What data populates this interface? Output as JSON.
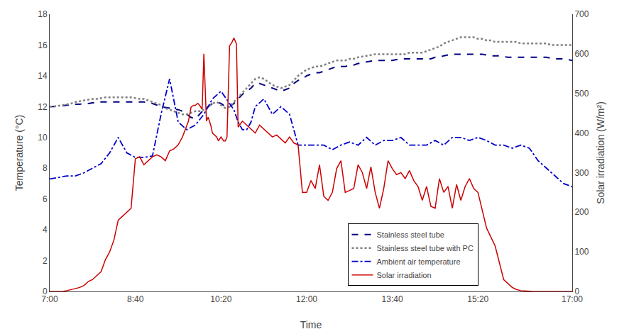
{
  "chart_data": {
    "type": "line",
    "xlabel": "Time",
    "ylabel": "Temperature (°C)",
    "y2label": "Solar irradiation (W/m²)",
    "xlim": [
      0,
      610
    ],
    "ylim": [
      0,
      18
    ],
    "y2lim": [
      0,
      700
    ],
    "xticks": [
      {
        "value": 0,
        "label": "7:00"
      },
      {
        "value": 100,
        "label": "8:40"
      },
      {
        "value": 200,
        "label": "10:20"
      },
      {
        "value": 300,
        "label": "12:00"
      },
      {
        "value": 400,
        "label": "13:40"
      },
      {
        "value": 500,
        "label": "15:20"
      },
      {
        "value": 610,
        "label": "17:00"
      }
    ],
    "yticks": [
      0,
      2,
      4,
      6,
      8,
      10,
      12,
      14,
      16,
      18
    ],
    "y2ticks": [
      0,
      100,
      200,
      300,
      400,
      500,
      600,
      700
    ],
    "grid": false,
    "legend": "lower right",
    "series": [
      {
        "name": "Stainless steel tube",
        "color": "#000080",
        "line_style": "dashed",
        "x": [
          0,
          5,
          10,
          15,
          20,
          25,
          30,
          35,
          40,
          45,
          50,
          55,
          60,
          65,
          70,
          75,
          80,
          85,
          90,
          95,
          100,
          105,
          110,
          115,
          120,
          125,
          130,
          135,
          140,
          145,
          150,
          155,
          160,
          165,
          170,
          175,
          180,
          185,
          190,
          195,
          200,
          205,
          210,
          215,
          220,
          225,
          230,
          235,
          240,
          245,
          250,
          255,
          260,
          265,
          270,
          275,
          280,
          285,
          290,
          295,
          300,
          305,
          310,
          315,
          320,
          325,
          330,
          335,
          340,
          345,
          350,
          355,
          360,
          365,
          370,
          375,
          380,
          385,
          390,
          395,
          400,
          405,
          410,
          415,
          420,
          425,
          430,
          435,
          440,
          445,
          450,
          455,
          460,
          465,
          470,
          475,
          480,
          485,
          490,
          495,
          500,
          505,
          510,
          515,
          520,
          525,
          530,
          535,
          540,
          545,
          550,
          555,
          560,
          565,
          570,
          575,
          580,
          585,
          590,
          595,
          600,
          605,
          610
        ],
        "values": [
          12.0,
          12.0,
          12.05,
          12.05,
          12.1,
          12.1,
          12.15,
          12.15,
          12.2,
          12.2,
          12.25,
          12.25,
          12.3,
          12.3,
          12.3,
          12.3,
          12.3,
          12.3,
          12.3,
          12.3,
          12.3,
          12.3,
          12.3,
          12.25,
          12.2,
          12.1,
          12.0,
          11.95,
          11.9,
          11.85,
          11.8,
          11.7,
          11.5,
          11.3,
          11.2,
          11.5,
          11.8,
          12.0,
          12.2,
          12.3,
          12.2,
          12.0,
          12.0,
          12.2,
          12.5,
          12.8,
          13.0,
          13.2,
          13.5,
          13.5,
          13.4,
          13.3,
          13.2,
          13.1,
          13.0,
          13.1,
          13.2,
          13.5,
          13.7,
          13.8,
          14.0,
          14.1,
          14.2,
          14.2,
          14.3,
          14.4,
          14.5,
          14.6,
          14.6,
          14.6,
          14.7,
          14.7,
          14.8,
          14.85,
          14.9,
          14.95,
          15.0,
          15.0,
          15.0,
          15.0,
          15.0,
          15.05,
          15.1,
          15.1,
          15.1,
          15.1,
          15.1,
          15.1,
          15.1,
          15.1,
          15.2,
          15.2,
          15.3,
          15.35,
          15.4,
          15.4,
          15.4,
          15.4,
          15.4,
          15.4,
          15.4,
          15.4,
          15.35,
          15.3,
          15.3,
          15.3,
          15.25,
          15.2,
          15.2,
          15.2,
          15.2,
          15.2,
          15.2,
          15.2,
          15.2,
          15.2,
          15.2,
          15.15,
          15.1,
          15.1,
          15.1,
          15.05,
          15.0
        ]
      },
      {
        "name": "Stainless steel tube with PC",
        "color": "#808080",
        "line_style": "dotted",
        "x": [
          0,
          5,
          10,
          15,
          20,
          25,
          30,
          35,
          40,
          45,
          50,
          55,
          60,
          65,
          70,
          75,
          80,
          85,
          90,
          95,
          100,
          105,
          110,
          115,
          120,
          125,
          130,
          135,
          140,
          145,
          150,
          155,
          160,
          165,
          170,
          175,
          180,
          185,
          190,
          195,
          200,
          205,
          210,
          215,
          220,
          225,
          230,
          235,
          240,
          245,
          250,
          255,
          260,
          265,
          270,
          275,
          280,
          285,
          290,
          295,
          300,
          305,
          310,
          315,
          320,
          325,
          330,
          335,
          340,
          345,
          350,
          355,
          360,
          365,
          370,
          375,
          380,
          385,
          390,
          395,
          400,
          405,
          410,
          415,
          420,
          425,
          430,
          435,
          440,
          445,
          450,
          455,
          460,
          465,
          470,
          475,
          480,
          485,
          490,
          495,
          500,
          505,
          510,
          515,
          520,
          525,
          530,
          535,
          540,
          545,
          550,
          555,
          560,
          565,
          570,
          575,
          580,
          585,
          590,
          595,
          600,
          605,
          610
        ],
        "values": [
          12.0,
          12.0,
          12.05,
          12.1,
          12.15,
          12.2,
          12.3,
          12.35,
          12.4,
          12.45,
          12.5,
          12.5,
          12.55,
          12.6,
          12.6,
          12.6,
          12.6,
          12.6,
          12.6,
          12.6,
          12.55,
          12.5,
          12.5,
          12.4,
          12.3,
          12.2,
          12.1,
          11.9,
          11.8,
          11.7,
          11.6,
          11.5,
          11.5,
          11.6,
          11.7,
          11.7,
          11.8,
          12.0,
          12.2,
          12.3,
          12.1,
          11.9,
          12.0,
          12.3,
          12.6,
          12.9,
          13.2,
          13.5,
          13.8,
          13.9,
          13.8,
          13.6,
          13.4,
          13.3,
          13.2,
          13.3,
          13.4,
          13.7,
          14.0,
          14.2,
          14.4,
          14.5,
          14.6,
          14.6,
          14.7,
          14.8,
          14.9,
          15.0,
          15.0,
          15.0,
          15.1,
          15.1,
          15.2,
          15.25,
          15.3,
          15.35,
          15.4,
          15.4,
          15.4,
          15.4,
          15.4,
          15.4,
          15.4,
          15.4,
          15.5,
          15.5,
          15.5,
          15.5,
          15.6,
          15.7,
          15.8,
          15.9,
          16.1,
          16.2,
          16.3,
          16.4,
          16.5,
          16.5,
          16.5,
          16.5,
          16.4,
          16.4,
          16.3,
          16.3,
          16.2,
          16.2,
          16.2,
          16.2,
          16.2,
          16.2,
          16.1,
          16.1,
          16.1,
          16.1,
          16.1,
          16.1,
          16.1,
          16.0,
          16.0,
          16.0,
          16.0,
          16.0,
          16.0
        ]
      },
      {
        "name": "Ambient air temperature",
        "color": "#0000CC",
        "line_style": "dashdot",
        "x": [
          0,
          10,
          20,
          30,
          40,
          50,
          60,
          70,
          80,
          90,
          100,
          110,
          120,
          130,
          140,
          150,
          160,
          170,
          180,
          190,
          200,
          210,
          215,
          220,
          225,
          230,
          235,
          240,
          250,
          260,
          270,
          280,
          290,
          300,
          310,
          320,
          330,
          340,
          350,
          360,
          370,
          380,
          390,
          400,
          410,
          420,
          430,
          440,
          450,
          460,
          470,
          480,
          490,
          500,
          510,
          520,
          530,
          540,
          550,
          560,
          570,
          580,
          590,
          600,
          610
        ],
        "values": [
          7.3,
          7.4,
          7.5,
          7.5,
          7.7,
          8.0,
          8.3,
          9.0,
          10.0,
          9.0,
          8.7,
          8.7,
          8.8,
          11.5,
          13.8,
          11.0,
          10.5,
          10.8,
          11.5,
          12.5,
          13.0,
          12.2,
          11.8,
          11.0,
          10.5,
          10.5,
          11.0,
          12.0,
          12.5,
          11.5,
          12.0,
          11.5,
          9.5,
          9.5,
          9.5,
          9.5,
          9.2,
          9.5,
          9.7,
          9.5,
          10.0,
          9.5,
          9.8,
          9.8,
          10.0,
          9.5,
          9.5,
          9.5,
          9.8,
          9.5,
          10.0,
          10.0,
          9.8,
          10.0,
          9.8,
          9.5,
          9.5,
          9.3,
          9.5,
          9.3,
          8.5,
          8.0,
          7.5,
          7.0,
          6.8
        ]
      },
      {
        "name": "Solar irradiation",
        "color": "#CC0000",
        "line_style": "solid",
        "axis": "y2",
        "x": [
          0,
          5,
          10,
          15,
          20,
          25,
          30,
          35,
          40,
          45,
          50,
          55,
          60,
          65,
          70,
          75,
          80,
          85,
          90,
          95,
          100,
          105,
          110,
          115,
          120,
          125,
          130,
          135,
          140,
          145,
          150,
          155,
          160,
          162,
          165,
          168,
          170,
          173,
          175,
          178,
          180,
          183,
          185,
          188,
          190,
          193,
          195,
          197,
          200,
          203,
          205,
          207,
          210,
          213,
          215,
          218,
          220,
          225,
          230,
          235,
          240,
          245,
          250,
          255,
          260,
          265,
          270,
          275,
          280,
          285,
          290,
          295,
          300,
          305,
          310,
          315,
          320,
          325,
          330,
          335,
          340,
          345,
          350,
          355,
          360,
          365,
          370,
          375,
          380,
          385,
          390,
          395,
          400,
          405,
          410,
          415,
          420,
          425,
          430,
          435,
          440,
          445,
          450,
          455,
          460,
          465,
          470,
          475,
          480,
          485,
          490,
          495,
          500,
          510,
          520,
          530,
          540,
          545,
          550,
          555,
          560,
          565,
          570,
          575,
          580,
          585,
          590,
          595,
          600,
          605,
          610
        ],
        "values": [
          0,
          0,
          0,
          0,
          2,
          5,
          8,
          10,
          15,
          25,
          30,
          40,
          50,
          80,
          100,
          130,
          180,
          190,
          200,
          210,
          335,
          340,
          320,
          330,
          340,
          345,
          340,
          330,
          355,
          360,
          370,
          390,
          420,
          430,
          465,
          470,
          470,
          475,
          470,
          460,
          600,
          430,
          440,
          420,
          400,
          395,
          390,
          380,
          390,
          380,
          380,
          390,
          620,
          630,
          640,
          625,
          415,
          430,
          420,
          410,
          400,
          420,
          410,
          400,
          390,
          395,
          385,
          375,
          390,
          375,
          370,
          250,
          250,
          280,
          260,
          320,
          240,
          230,
          250,
          310,
          330,
          250,
          255,
          260,
          320,
          300,
          260,
          315,
          250,
          210,
          260,
          330,
          310,
          295,
          300,
          285,
          305,
          280,
          265,
          230,
          265,
          215,
          210,
          285,
          250,
          265,
          210,
          270,
          230,
          265,
          285,
          260,
          250,
          160,
          115,
          30,
          10,
          5,
          2,
          1,
          0,
          0,
          0,
          0,
          0,
          0,
          0,
          0,
          0,
          0,
          0
        ]
      }
    ]
  }
}
